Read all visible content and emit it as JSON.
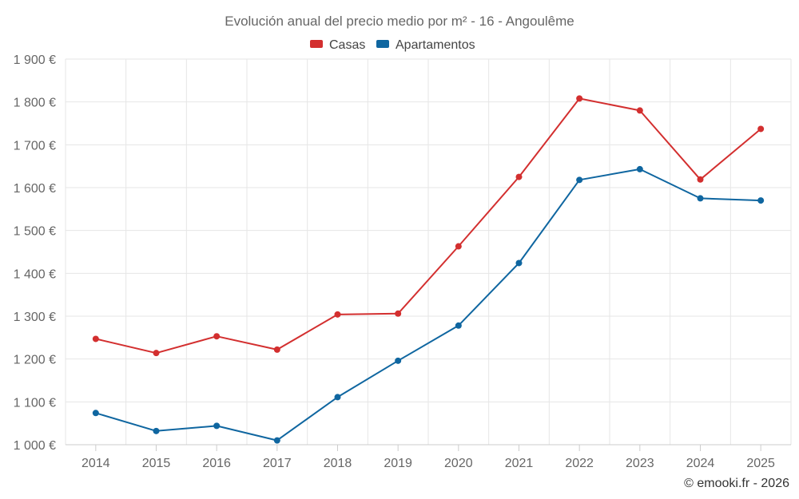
{
  "chart_data": {
    "type": "line",
    "title": "Evolución anual del precio medio por m² - 16 - Angoulême",
    "categories": [
      "2014",
      "2015",
      "2016",
      "2017",
      "2018",
      "2019",
      "2020",
      "2021",
      "2022",
      "2023",
      "2024",
      "2025"
    ],
    "series": [
      {
        "name": "Casas",
        "color": "#d32f2f",
        "values": [
          1247,
          1214,
          1253,
          1222,
          1304,
          1306,
          1463,
          1625,
          1808,
          1780,
          1619,
          1737
        ]
      },
      {
        "name": "Apartamentos",
        "color": "#0f66a0",
        "values": [
          1074,
          1032,
          1044,
          1010,
          1111,
          1196,
          1278,
          1424,
          1618,
          1643,
          1575,
          1570
        ]
      }
    ],
    "ylim": [
      1000,
      1900
    ],
    "y_ticks": [
      1000,
      1100,
      1200,
      1300,
      1400,
      1500,
      1600,
      1700,
      1800,
      1900
    ],
    "y_tick_labels": [
      "1 000 €",
      "1 100 €",
      "1 200 €",
      "1 300 €",
      "1 400 €",
      "1 500 €",
      "1 600 €",
      "1 700 €",
      "1 800 €",
      "1 900 €"
    ],
    "xlabel": "",
    "ylabel": "",
    "grid": true,
    "legend_position": "top-center",
    "credit": "© emooki.fr - 2026"
  }
}
